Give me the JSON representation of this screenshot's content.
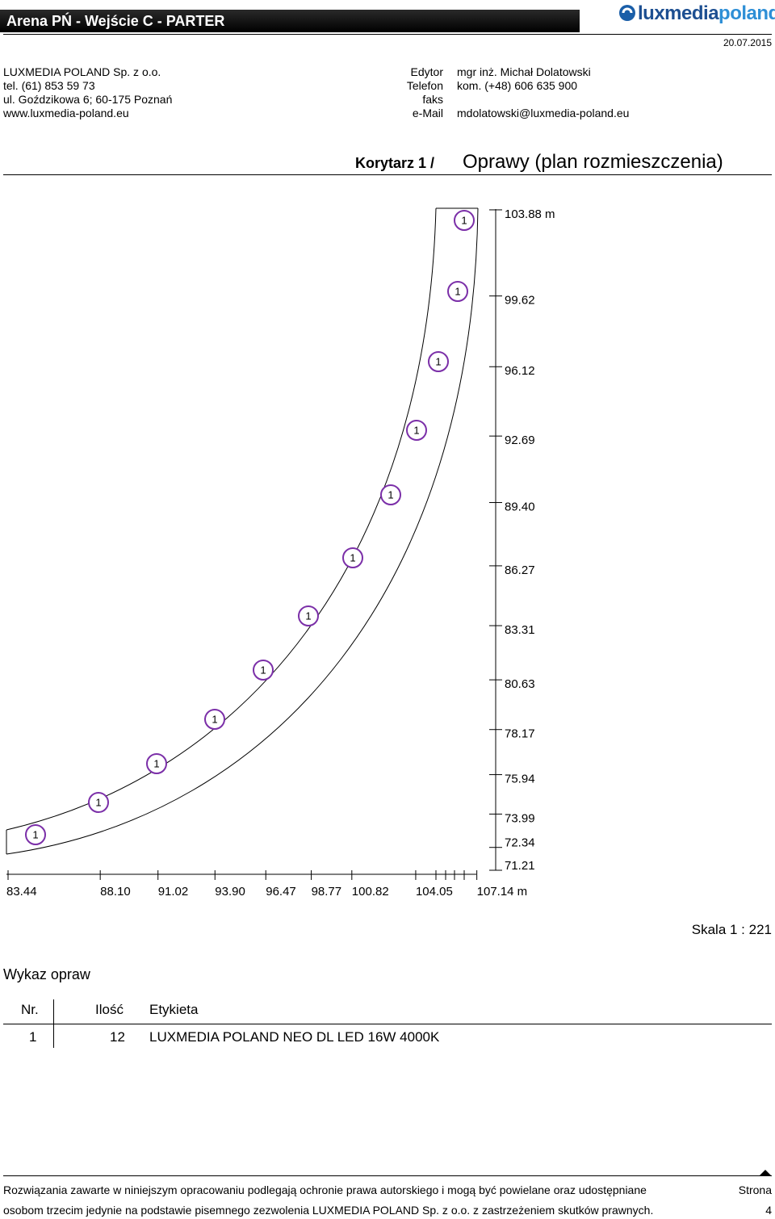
{
  "header": {
    "title": "Arena PŃ - Wejście C - PARTER",
    "logo": [
      "luxmedia",
      "poland"
    ],
    "date": "20.07.2015"
  },
  "company": [
    "LUXMEDIA POLAND Sp. z o.o.",
    "tel. (61) 853 59 73",
    "ul. Goździkowa 6; 60-175 Poznań",
    "www.luxmedia-poland.eu"
  ],
  "contact": [
    {
      "label": "Edytor",
      "value": "mgr inż. Michał Dolatowski"
    },
    {
      "label": "Telefon",
      "value": "kom. (+48) 606 635 900"
    },
    {
      "label": "faks"
    },
    {
      "label": "e-Mail",
      "value": "mdolatowski@luxmedia-poland.eu"
    }
  ],
  "section": {
    "prefix": "Korytarz 1 /",
    "title": "Oprawy (plan rozmieszczenia)"
  },
  "plan": {
    "luminaires": [
      "1",
      "1",
      "1",
      "1",
      "1",
      "1",
      "1",
      "1",
      "1",
      "1",
      "1",
      "1"
    ],
    "y_dimensions": [
      "103.88 m",
      "99.62",
      "96.12",
      "92.69",
      "89.40",
      "86.27",
      "83.31",
      "80.63",
      "78.17",
      "75.94",
      "73.99",
      "72.34",
      "71.21"
    ],
    "x_dimensions": [
      "83.44",
      "88.10",
      "91.02",
      "93.90",
      "96.47",
      "98.77",
      "100.82",
      "104.05",
      "107.14 m"
    ],
    "scale": "Skala 1 : 221"
  },
  "list": {
    "title": "Wykaz opraw",
    "headers": [
      "Nr.",
      "Ilość",
      "Etykieta"
    ],
    "rows": [
      [
        "1",
        "12",
        "LUXMEDIA POLAND NEO DL LED 16W 4000K"
      ]
    ]
  },
  "footer": {
    "lines": [
      "Rozwiązania zawarte w niniejszym opracowaniu podlegają ochronie prawa autorskiego i mogą być powielane oraz udostępniane",
      "osobom trzecim jedynie na podstawie pisemnego zezwolenia LUXMEDIA POLAND Sp. z o.o. z zastrzeżeniem skutków prawnych."
    ],
    "page_label": "Strona",
    "page": "4"
  }
}
